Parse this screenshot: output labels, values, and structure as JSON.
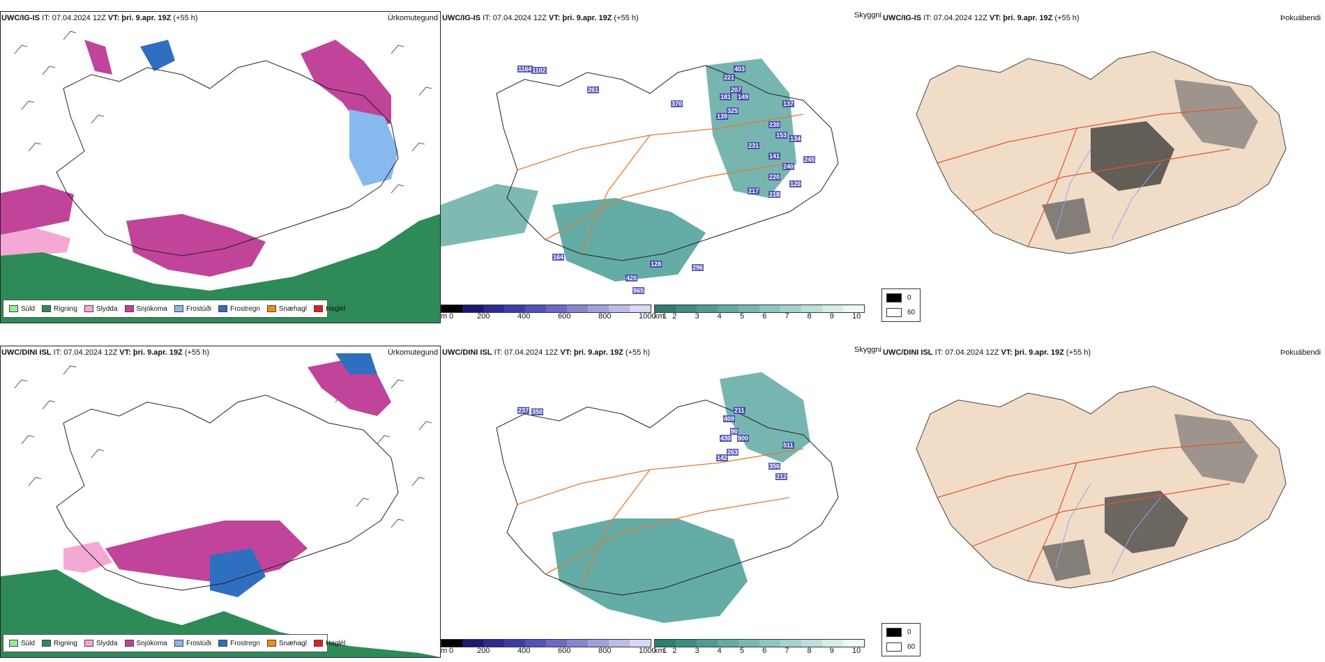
{
  "precip_legend": [
    {
      "label": "Súld",
      "color": "#90ee90"
    },
    {
      "label": "Rigning",
      "color": "#2e8b57"
    },
    {
      "label": "Slydda",
      "color": "#f4a8d4"
    },
    {
      "label": "Snjókoma",
      "color": "#c0449a"
    },
    {
      "label": "Frostúði",
      "color": "#87b9ee"
    },
    {
      "label": "Frostregn",
      "color": "#2f6fbf"
    },
    {
      "label": "Snæhagl",
      "color": "#f08c10"
    },
    {
      "label": "Haglél",
      "color": "#e02020"
    }
  ],
  "cloud_base_bar": {
    "unit": "m",
    "ticks": [
      "0",
      "200",
      "400",
      "600",
      "800",
      "1000"
    ]
  },
  "visibility_bar": {
    "unit": "km",
    "ticks": [
      "1",
      "2",
      "3",
      "4",
      "5",
      "6",
      "7",
      "8",
      "9",
      "10"
    ]
  },
  "fog_legend": {
    "values": [
      "0",
      "60"
    ]
  },
  "rows": [
    {
      "model": "UWC/IG-IS",
      "it": "IT: 07.04.2024 12Z",
      "vt_label": "VT:",
      "vt": "þri. 9.apr. 19Z",
      "lead": "(+55 h)",
      "panel_names": [
        "Úrkomutegund",
        "Skyggni",
        "Þokuábendi"
      ],
      "cloud_values": [
        "1164",
        "1102",
        "403",
        "221",
        "207",
        "181",
        "149",
        "325",
        "139",
        "137",
        "230",
        "153",
        "134",
        "231",
        "141",
        "240",
        "245",
        "220",
        "120",
        "217",
        "218",
        "164",
        "128",
        "296",
        "420",
        "965",
        "370",
        "261"
      ]
    },
    {
      "model": "UWC/DINI ISL",
      "it": "IT: 07.04.2024 12Z",
      "vt_label": "VT:",
      "vt": "þri. 9.apr. 19Z",
      "lead": "(+55 h)",
      "panel_names": [
        "Úrkomutegund",
        "Skyggni",
        "Þokuábendi"
      ],
      "cloud_values": [
        "237",
        "350",
        "211",
        "409",
        "90",
        "430",
        "900",
        "263",
        "142",
        "511",
        "356",
        "212"
      ]
    }
  ]
}
